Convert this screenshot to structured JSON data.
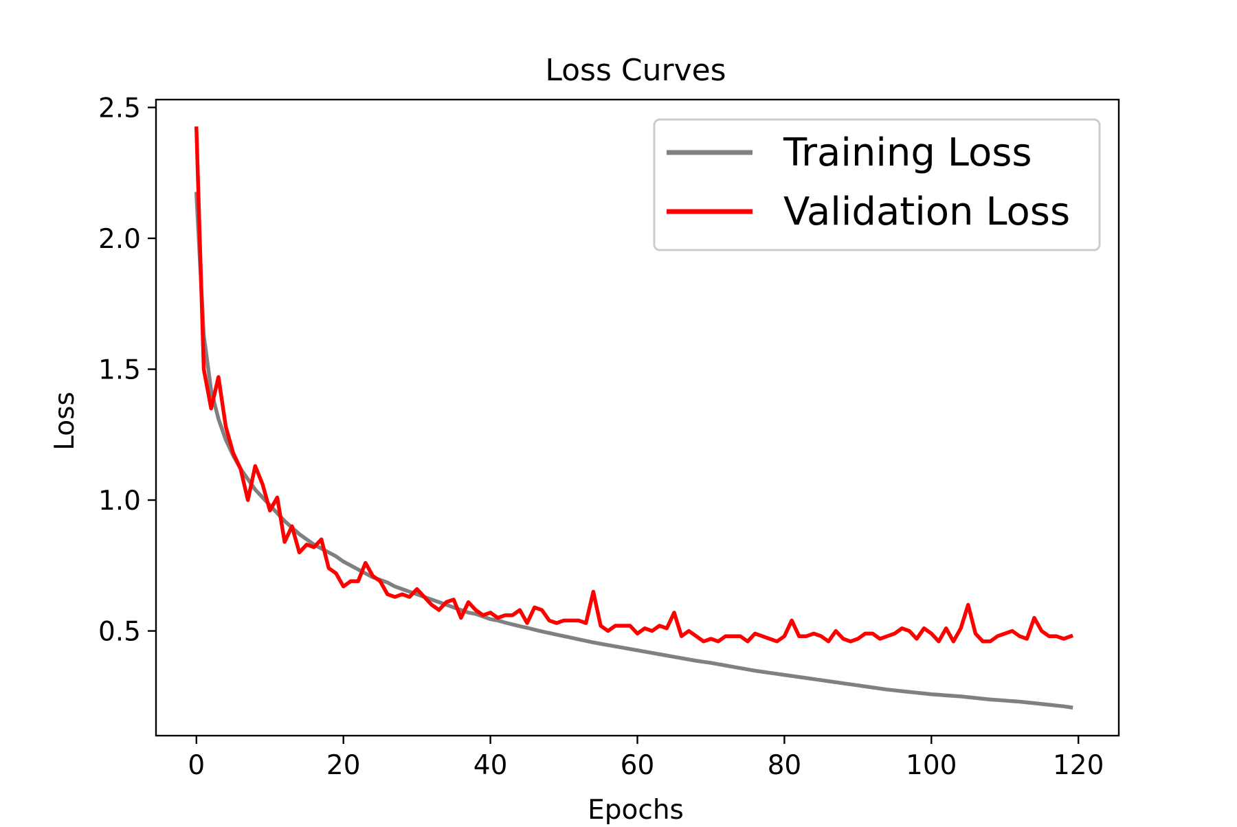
{
  "chart_data": {
    "type": "line",
    "title": "Loss Curves",
    "xlabel": "Epochs",
    "ylabel": "Loss",
    "xlim": [
      -5.5,
      125.5
    ],
    "ylim": [
      0.1,
      2.53
    ],
    "xticks": [
      0,
      20,
      40,
      60,
      80,
      100,
      120
    ],
    "yticks": [
      0.5,
      1.0,
      1.5,
      2.0,
      2.5
    ],
    "ytick_labels": [
      "0.5",
      "1.0",
      "1.5",
      "2.0",
      "2.5"
    ],
    "grid": false,
    "legend_position": "top-right",
    "x": [
      0,
      1,
      2,
      3,
      4,
      5,
      6,
      7,
      8,
      9,
      10,
      11,
      12,
      13,
      14,
      15,
      16,
      17,
      18,
      19,
      20,
      21,
      22,
      23,
      24,
      25,
      26,
      27,
      28,
      29,
      30,
      31,
      32,
      33,
      34,
      35,
      36,
      37,
      38,
      39,
      40,
      41,
      42,
      43,
      44,
      45,
      46,
      47,
      48,
      49,
      50,
      51,
      52,
      53,
      54,
      55,
      56,
      57,
      58,
      59,
      60,
      61,
      62,
      63,
      64,
      65,
      66,
      67,
      68,
      69,
      70,
      71,
      72,
      73,
      74,
      75,
      76,
      77,
      78,
      79,
      80,
      81,
      82,
      83,
      84,
      85,
      86,
      87,
      88,
      89,
      90,
      91,
      92,
      93,
      94,
      95,
      96,
      97,
      98,
      99,
      100,
      101,
      102,
      103,
      104,
      105,
      106,
      107,
      108,
      109,
      110,
      111,
      112,
      113,
      114,
      115,
      116,
      117,
      118,
      119
    ],
    "series": [
      {
        "name": "Training Loss",
        "color": "#808080",
        "values": [
          2.17,
          1.63,
          1.42,
          1.31,
          1.23,
          1.17,
          1.12,
          1.08,
          1.04,
          1.01,
          0.98,
          0.95,
          0.92,
          0.895,
          0.87,
          0.85,
          0.83,
          0.815,
          0.8,
          0.785,
          0.765,
          0.75,
          0.735,
          0.72,
          0.705,
          0.695,
          0.685,
          0.67,
          0.66,
          0.65,
          0.64,
          0.63,
          0.62,
          0.61,
          0.6,
          0.59,
          0.58,
          0.57,
          0.565,
          0.555,
          0.545,
          0.54,
          0.532,
          0.525,
          0.518,
          0.512,
          0.505,
          0.498,
          0.492,
          0.486,
          0.48,
          0.474,
          0.468,
          0.462,
          0.456,
          0.451,
          0.446,
          0.441,
          0.436,
          0.431,
          0.426,
          0.421,
          0.416,
          0.411,
          0.406,
          0.401,
          0.396,
          0.391,
          0.386,
          0.382,
          0.378,
          0.373,
          0.368,
          0.363,
          0.358,
          0.353,
          0.348,
          0.344,
          0.34,
          0.336,
          0.332,
          0.328,
          0.324,
          0.32,
          0.316,
          0.312,
          0.308,
          0.304,
          0.3,
          0.296,
          0.292,
          0.288,
          0.284,
          0.28,
          0.276,
          0.273,
          0.27,
          0.267,
          0.264,
          0.261,
          0.258,
          0.256,
          0.254,
          0.252,
          0.25,
          0.247,
          0.244,
          0.241,
          0.238,
          0.236,
          0.234,
          0.232,
          0.23,
          0.227,
          0.224,
          0.221,
          0.218,
          0.215,
          0.212,
          0.208
        ]
      },
      {
        "name": "Validation Loss",
        "color": "#ff0000",
        "values": [
          2.42,
          1.5,
          1.35,
          1.47,
          1.28,
          1.18,
          1.12,
          1.0,
          1.13,
          1.06,
          0.96,
          1.01,
          0.84,
          0.9,
          0.8,
          0.83,
          0.82,
          0.85,
          0.74,
          0.72,
          0.67,
          0.69,
          0.69,
          0.76,
          0.71,
          0.69,
          0.64,
          0.63,
          0.64,
          0.63,
          0.66,
          0.63,
          0.6,
          0.58,
          0.61,
          0.62,
          0.55,
          0.61,
          0.58,
          0.56,
          0.57,
          0.55,
          0.56,
          0.56,
          0.58,
          0.53,
          0.59,
          0.58,
          0.54,
          0.53,
          0.54,
          0.54,
          0.54,
          0.53,
          0.65,
          0.52,
          0.5,
          0.52,
          0.52,
          0.52,
          0.49,
          0.51,
          0.5,
          0.52,
          0.51,
          0.57,
          0.48,
          0.5,
          0.48,
          0.46,
          0.47,
          0.46,
          0.48,
          0.48,
          0.48,
          0.46,
          0.49,
          0.48,
          0.47,
          0.46,
          0.48,
          0.54,
          0.48,
          0.48,
          0.49,
          0.48,
          0.46,
          0.5,
          0.47,
          0.46,
          0.47,
          0.49,
          0.49,
          0.47,
          0.48,
          0.49,
          0.51,
          0.5,
          0.47,
          0.51,
          0.49,
          0.46,
          0.51,
          0.46,
          0.51,
          0.6,
          0.49,
          0.46,
          0.46,
          0.48,
          0.49,
          0.5,
          0.48,
          0.47,
          0.55,
          0.5,
          0.48,
          0.48,
          0.47,
          0.48
        ]
      }
    ]
  }
}
